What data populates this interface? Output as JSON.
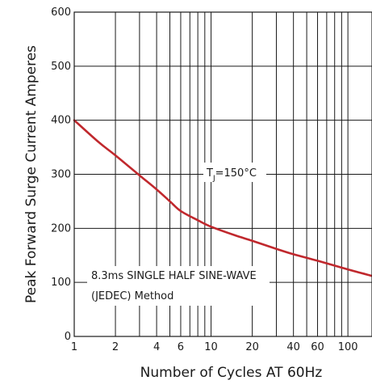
{
  "chart_data": {
    "type": "line",
    "title": "",
    "xlabel": "Number of Cycles AT 60Hz",
    "ylabel": "Peak Forward Surge Current Amperes",
    "x_scale": "log",
    "xlim": [
      1,
      150
    ],
    "ylim": [
      0,
      600
    ],
    "x_ticks": [
      1,
      2,
      4,
      6,
      10,
      20,
      40,
      60,
      100
    ],
    "x_tick_labels": [
      "1",
      "2",
      "4",
      "6",
      "10",
      "20",
      "40",
      "60",
      "100"
    ],
    "y_ticks": [
      0,
      100,
      200,
      300,
      400,
      500,
      600
    ],
    "y_tick_labels": [
      "0",
      "100",
      "200",
      "300",
      "400",
      "500",
      "600"
    ],
    "grid": true,
    "series": [
      {
        "color": "#c0282d",
        "x": [
          1,
          1.5,
          2,
          3,
          4,
          5,
          6,
          8,
          10,
          15,
          20,
          30,
          40,
          60,
          100,
          150
        ],
        "y": [
          400,
          360,
          335,
          298,
          272,
          250,
          232,
          215,
          203,
          187,
          177,
          162,
          152,
          140,
          124,
          112
        ]
      }
    ],
    "annotations": {
      "temperature_main": "T",
      "temperature_sub": "J",
      "temperature_rest": "=150°C",
      "note_line1": "8.3ms SINGLE HALF SINE-WAVE",
      "note_line2": "(JEDEC) Method"
    }
  }
}
